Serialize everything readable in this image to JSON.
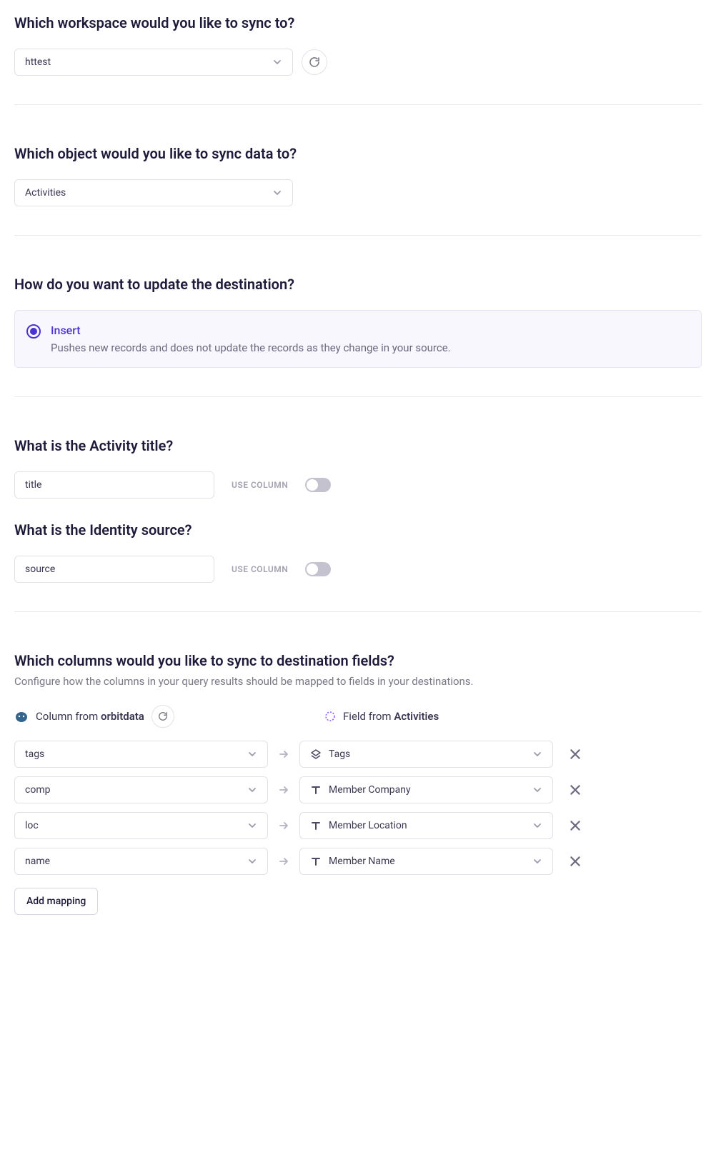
{
  "workspace": {
    "question": "Which workspace would you like to sync to?",
    "selected": "httest"
  },
  "object": {
    "question": "Which object would you like to sync data to?",
    "selected": "Activities"
  },
  "updateMode": {
    "question": "How do you want to update the destination?",
    "option": {
      "title": "Insert",
      "description": "Pushes new records and does not update the records as they change in your source."
    }
  },
  "activityTitle": {
    "question": "What is the Activity title?",
    "value": "title",
    "toggleLabel": "USE COLUMN"
  },
  "identitySource": {
    "question": "What is the Identity source?",
    "value": "source",
    "toggleLabel": "USE COLUMN"
  },
  "mapping": {
    "question": "Which columns would you like to sync to destination fields?",
    "subtext": "Configure how the columns in your query results should be mapped to fields in your destinations.",
    "sourceLabelPrefix": "Column from ",
    "sourceName": "orbitdata",
    "destLabelPrefix": "Field from ",
    "destName": "Activities",
    "rows": [
      {
        "source": "tags",
        "fieldIcon": "layers",
        "field": "Tags"
      },
      {
        "source": "comp",
        "fieldIcon": "text",
        "field": "Member Company"
      },
      {
        "source": "loc",
        "fieldIcon": "text",
        "field": "Member Location"
      },
      {
        "source": "name",
        "fieldIcon": "text",
        "field": "Member Name"
      }
    ],
    "addButton": "Add mapping"
  }
}
